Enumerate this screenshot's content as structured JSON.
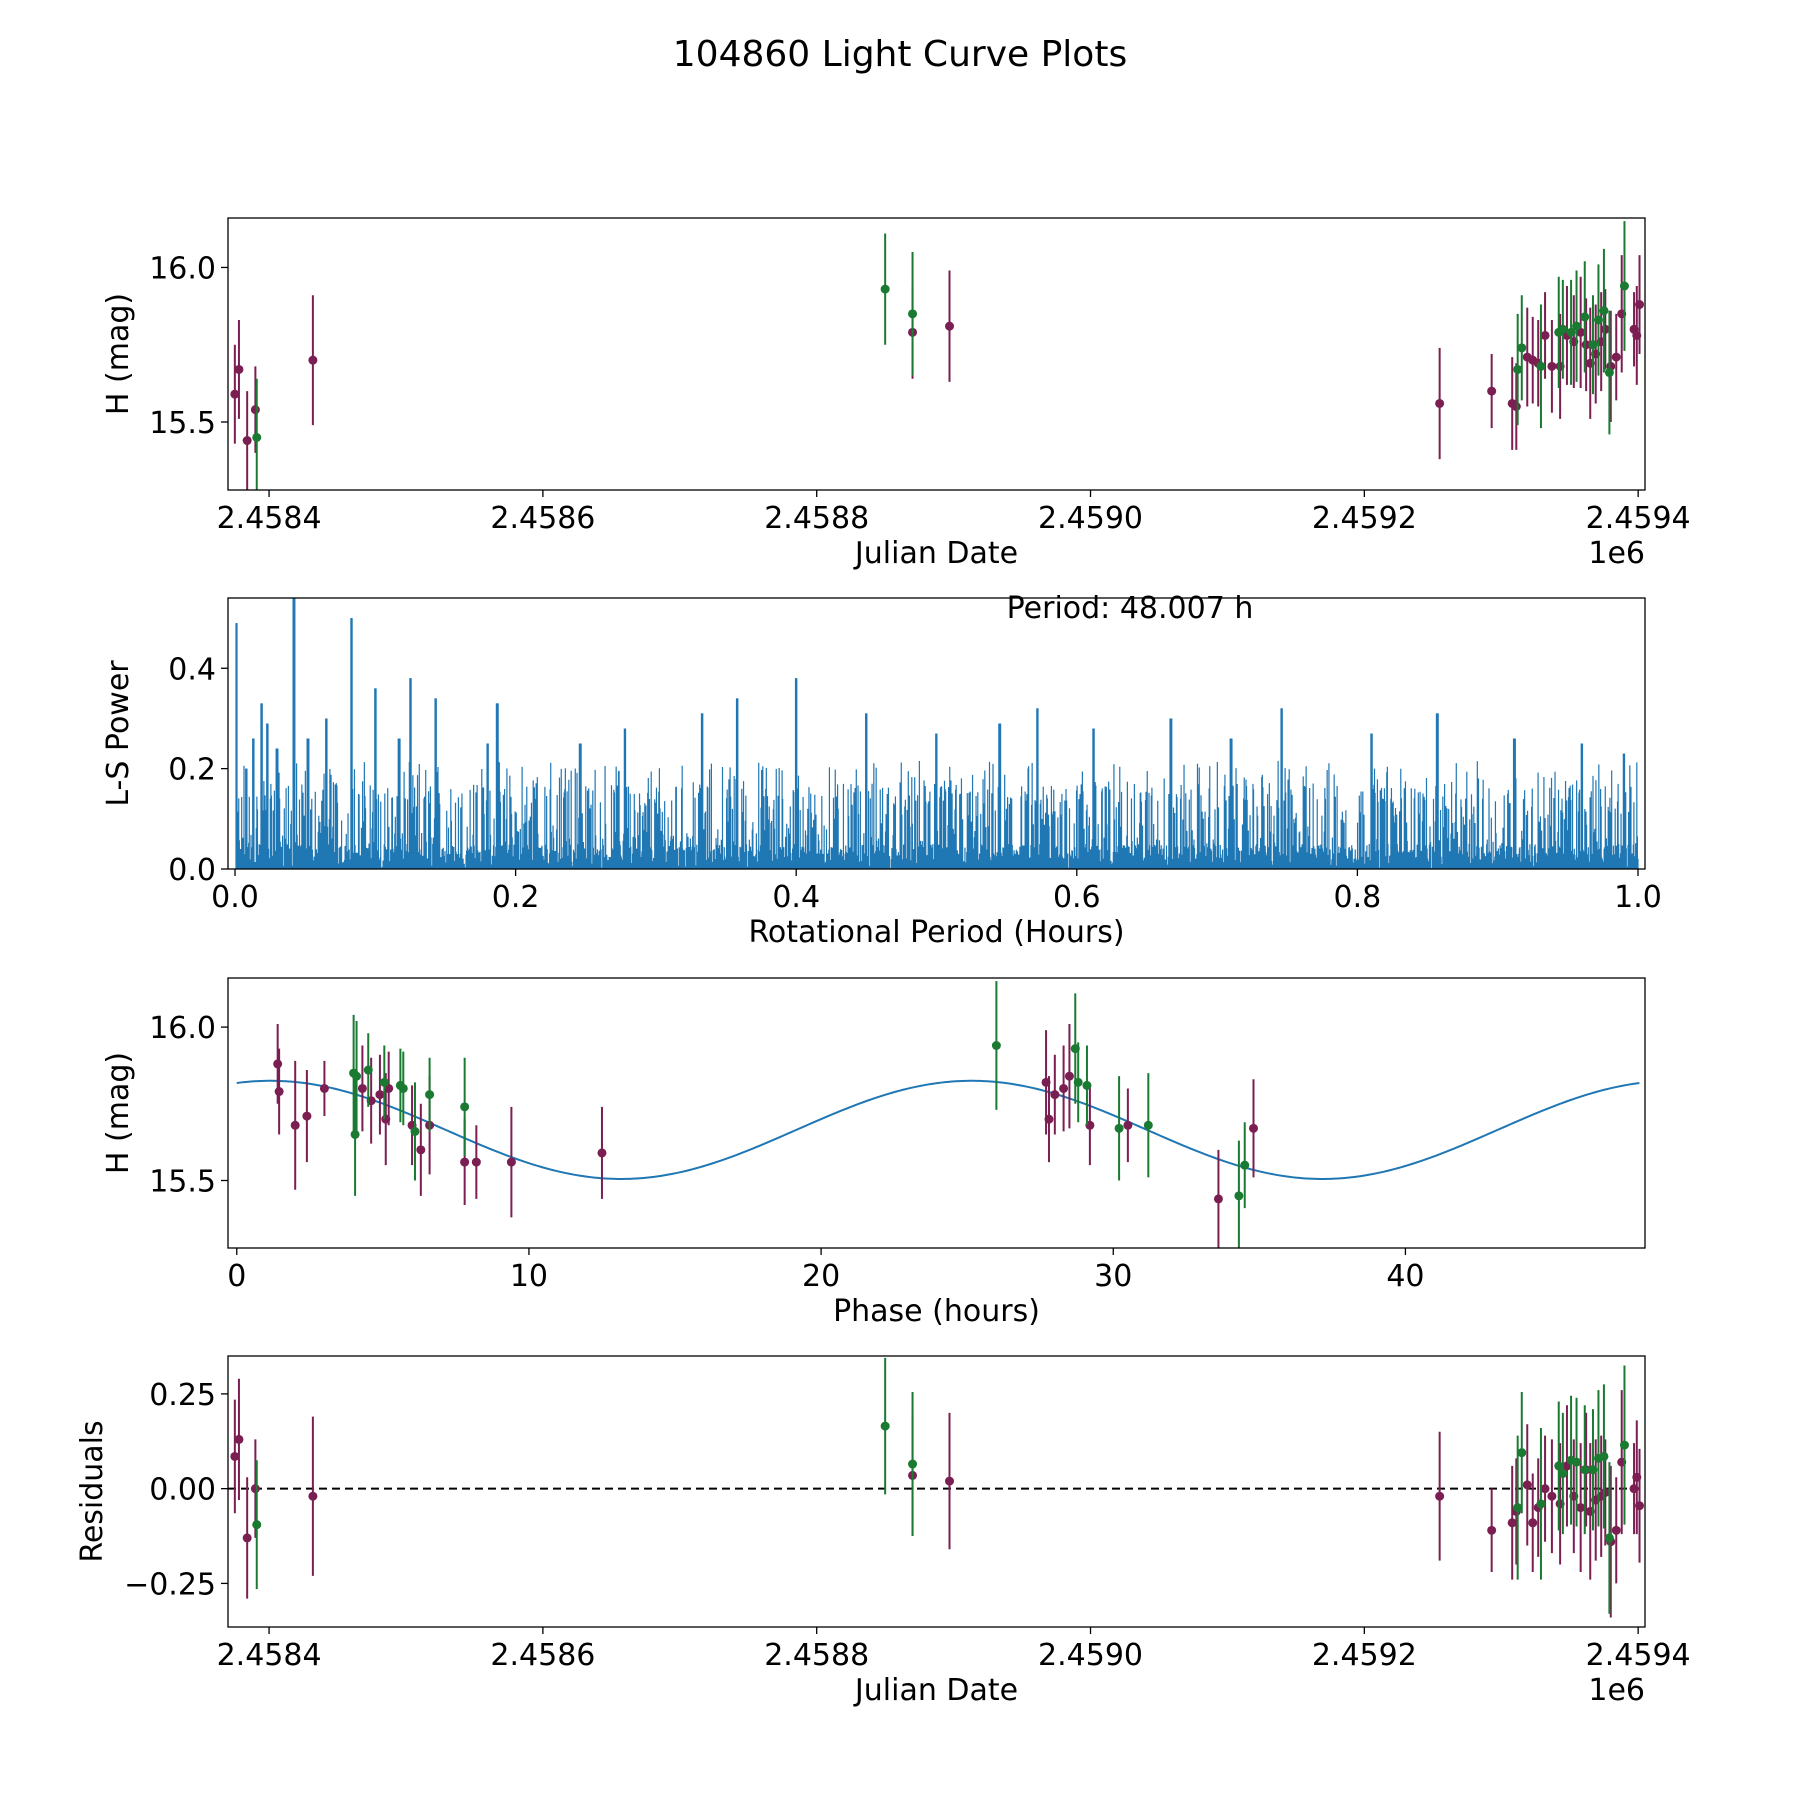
{
  "figure_title": "104860 Light Curve Plots",
  "colors": {
    "magenta": "#7b1f52",
    "green": "#1a7a32",
    "line": "#1f77b4"
  },
  "chart_data": [
    {
      "type": "scatter",
      "title": "",
      "xlabel": "Julian Date",
      "ylabel": "H (mag)",
      "x_offset_label": "1e6",
      "xlim": [
        2.45837,
        2.459405
      ],
      "ylim": [
        15.28,
        16.16
      ],
      "xticks": [
        2.4584,
        2.4586,
        2.4588,
        2.459,
        2.4592,
        2.4594
      ],
      "xtick_labels": [
        "2.4584",
        "2.4586",
        "2.4588",
        "2.4590",
        "2.4592",
        "2.4594"
      ],
      "yticks": [
        15.5,
        16.0
      ],
      "ytick_labels": [
        "15.5",
        "16.0"
      ],
      "series": [
        {
          "name": "band 1",
          "color": "magenta",
          "points": [
            [
              2.458375,
              15.59,
              0.16
            ],
            [
              2.458378,
              15.67,
              0.16
            ],
            [
              2.458384,
              15.44,
              0.16
            ],
            [
              2.45839,
              15.54,
              0.14
            ],
            [
              2.458432,
              15.7,
              0.21
            ],
            [
              2.45887,
              15.79,
              0.15
            ],
            [
              2.458897,
              15.81,
              0.18
            ],
            [
              2.459255,
              15.56,
              0.18
            ],
            [
              2.459293,
              15.6,
              0.12
            ],
            [
              2.459308,
              15.56,
              0.15
            ],
            [
              2.459311,
              15.55,
              0.14
            ],
            [
              2.459319,
              15.71,
              0.16
            ],
            [
              2.459323,
              15.7,
              0.14
            ],
            [
              2.459327,
              15.69,
              0.14
            ],
            [
              2.459332,
              15.78,
              0.14
            ],
            [
              2.459337,
              15.68,
              0.15
            ],
            [
              2.459343,
              15.68,
              0.17
            ],
            [
              2.459348,
              15.78,
              0.16
            ],
            [
              2.459353,
              15.76,
              0.15
            ],
            [
              2.459358,
              15.79,
              0.18
            ],
            [
              2.459362,
              15.75,
              0.15
            ],
            [
              2.459365,
              15.69,
              0.18
            ],
            [
              2.459369,
              15.72,
              0.16
            ],
            [
              2.459373,
              15.76,
              0.16
            ],
            [
              2.459376,
              15.8,
              0.13
            ],
            [
              2.45938,
              15.68,
              0.18
            ],
            [
              2.459384,
              15.71,
              0.14
            ],
            [
              2.459388,
              15.85,
              0.19
            ],
            [
              2.459397,
              15.8,
              0.12
            ],
            [
              2.459399,
              15.78,
              0.16
            ],
            [
              2.459401,
              15.88,
              0.16
            ]
          ]
        },
        {
          "name": "band 2",
          "color": "green",
          "points": [
            [
              2.458391,
              15.45,
              0.19
            ],
            [
              2.45885,
              15.93,
              0.18
            ],
            [
              2.45887,
              15.85,
              0.2
            ],
            [
              2.459312,
              15.67,
              0.18
            ],
            [
              2.459315,
              15.74,
              0.17
            ],
            [
              2.459329,
              15.68,
              0.2
            ],
            [
              2.459342,
              15.79,
              0.18
            ],
            [
              2.459345,
              15.8,
              0.16
            ],
            [
              2.459351,
              15.79,
              0.17
            ],
            [
              2.459355,
              15.81,
              0.18
            ],
            [
              2.459361,
              15.84,
              0.18
            ],
            [
              2.459367,
              15.75,
              0.16
            ],
            [
              2.459371,
              15.83,
              0.18
            ],
            [
              2.459375,
              15.86,
              0.2
            ],
            [
              2.459379,
              15.66,
              0.2
            ],
            [
              2.45939,
              15.94,
              0.21
            ]
          ]
        }
      ]
    },
    {
      "type": "line",
      "title": "",
      "xlabel": "Rotational Period (Hours)",
      "ylabel": "L-S Power",
      "annotation": "Period: 48.007 h",
      "xlim": [
        -0.005,
        1.005
      ],
      "ylim": [
        0,
        0.54
      ],
      "xticks": [
        0,
        0.2,
        0.4,
        0.6,
        0.8,
        1.0
      ],
      "xtick_labels": [
        "0.0",
        "0.2",
        "0.4",
        "0.6",
        "0.8",
        "1.0"
      ],
      "yticks": [
        0,
        0.2,
        0.4
      ],
      "ytick_labels": [
        "0.0",
        "0.2",
        "0.4"
      ],
      "n_points": 2400,
      "baseline_power": 0.17,
      "peaks": [
        [
          0.001,
          0.49
        ],
        [
          0.008,
          0.2
        ],
        [
          0.013,
          0.26
        ],
        [
          0.019,
          0.33
        ],
        [
          0.023,
          0.29
        ],
        [
          0.03,
          0.24
        ],
        [
          0.042,
          0.54
        ],
        [
          0.052,
          0.26
        ],
        [
          0.065,
          0.3
        ],
        [
          0.083,
          0.5
        ],
        [
          0.1,
          0.36
        ],
        [
          0.117,
          0.26
        ],
        [
          0.125,
          0.38
        ],
        [
          0.143,
          0.34
        ],
        [
          0.18,
          0.25
        ],
        [
          0.187,
          0.33
        ],
        [
          0.246,
          0.25
        ],
        [
          0.278,
          0.28
        ],
        [
          0.333,
          0.31
        ],
        [
          0.358,
          0.34
        ],
        [
          0.4,
          0.38
        ],
        [
          0.45,
          0.31
        ],
        [
          0.5,
          0.27
        ],
        [
          0.545,
          0.29
        ],
        [
          0.572,
          0.32
        ],
        [
          0.612,
          0.28
        ],
        [
          0.667,
          0.3
        ],
        [
          0.71,
          0.26
        ],
        [
          0.746,
          0.32
        ],
        [
          0.81,
          0.27
        ],
        [
          0.857,
          0.31
        ],
        [
          0.912,
          0.26
        ],
        [
          0.96,
          0.25
        ],
        [
          0.99,
          0.23
        ]
      ]
    },
    {
      "type": "scatter",
      "title": "",
      "xlabel": "Phase (hours)",
      "ylabel": "H (mag)",
      "xlim": [
        -0.3,
        48.2
      ],
      "ylim": [
        15.28,
        16.16
      ],
      "xticks": [
        0,
        10,
        20,
        30,
        40
      ],
      "xtick_labels": [
        "0",
        "10",
        "20",
        "30",
        "40"
      ],
      "yticks": [
        15.5,
        16.0
      ],
      "ytick_labels": [
        "15.5",
        "16.0"
      ],
      "model": {
        "period_hours": 48.007,
        "mean": 15.665,
        "amplitude": 0.16,
        "peak_phase": 1.15,
        "harmonics": 2
      },
      "series": [
        {
          "name": "band 1",
          "color": "magenta",
          "points": [
            [
              1.4,
              15.88,
              0.13
            ],
            [
              1.45,
              15.79,
              0.14
            ],
            [
              2.0,
              15.68,
              0.21
            ],
            [
              2.4,
              15.71,
              0.15
            ],
            [
              3.0,
              15.8,
              0.09
            ],
            [
              4.3,
              15.8,
              0.14
            ],
            [
              4.6,
              15.76,
              0.14
            ],
            [
              4.9,
              15.78,
              0.13
            ],
            [
              5.1,
              15.7,
              0.15
            ],
            [
              5.2,
              15.8,
              0.12
            ],
            [
              6.0,
              15.68,
              0.13
            ],
            [
              6.3,
              15.6,
              0.15
            ],
            [
              6.6,
              15.68,
              0.16
            ],
            [
              7.8,
              15.56,
              0.14
            ],
            [
              8.2,
              15.56,
              0.12
            ],
            [
              9.4,
              15.56,
              0.18
            ],
            [
              12.5,
              15.59,
              0.15
            ],
            [
              27.7,
              15.82,
              0.17
            ],
            [
              27.8,
              15.7,
              0.14
            ],
            [
              28.0,
              15.78,
              0.13
            ],
            [
              28.3,
              15.8,
              0.14
            ],
            [
              28.5,
              15.84,
              0.17
            ],
            [
              29.2,
              15.68,
              0.13
            ],
            [
              30.5,
              15.68,
              0.12
            ],
            [
              33.6,
              15.44,
              0.16
            ],
            [
              34.8,
              15.67,
              0.16
            ]
          ]
        },
        {
          "name": "band 2",
          "color": "green",
          "points": [
            [
              4.0,
              15.85,
              0.19
            ],
            [
              4.05,
              15.65,
              0.2
            ],
            [
              4.1,
              15.84,
              0.18
            ],
            [
              4.5,
              15.86,
              0.12
            ],
            [
              5.05,
              15.82,
              0.12
            ],
            [
              5.6,
              15.81,
              0.12
            ],
            [
              5.7,
              15.8,
              0.12
            ],
            [
              6.1,
              15.66,
              0.16
            ],
            [
              6.6,
              15.78,
              0.12
            ],
            [
              7.8,
              15.74,
              0.16
            ],
            [
              26.0,
              15.94,
              0.21
            ],
            [
              28.7,
              15.93,
              0.18
            ],
            [
              28.8,
              15.82,
              0.13
            ],
            [
              29.1,
              15.81,
              0.13
            ],
            [
              30.2,
              15.67,
              0.17
            ],
            [
              31.2,
              15.68,
              0.17
            ],
            [
              34.3,
              15.45,
              0.18
            ],
            [
              34.5,
              15.55,
              0.14
            ]
          ]
        }
      ]
    },
    {
      "type": "scatter",
      "title": "",
      "xlabel": "Julian Date",
      "ylabel": "Residuals",
      "x_offset_label": "1e6",
      "xlim": [
        2.45837,
        2.459405
      ],
      "ylim": [
        -0.365,
        0.35
      ],
      "xticks": [
        2.4584,
        2.4586,
        2.4588,
        2.459,
        2.4592,
        2.4594
      ],
      "xtick_labels": [
        "2.4584",
        "2.4586",
        "2.4588",
        "2.4590",
        "2.4592",
        "2.4594"
      ],
      "yticks": [
        -0.25,
        0.0,
        0.25
      ],
      "ytick_labels": [
        "−0.25",
        "0.00",
        "0.25"
      ],
      "reference_line": 0.0,
      "series": [
        {
          "name": "band 1",
          "color": "magenta",
          "points": [
            [
              2.458375,
              0.085,
              0.15
            ],
            [
              2.458378,
              0.13,
              0.16
            ],
            [
              2.458384,
              -0.13,
              0.16
            ],
            [
              2.45839,
              0.0,
              0.13
            ],
            [
              2.458432,
              -0.02,
              0.21
            ],
            [
              2.45887,
              0.035,
              0.16
            ],
            [
              2.458897,
              0.02,
              0.18
            ],
            [
              2.459255,
              -0.02,
              0.17
            ],
            [
              2.459293,
              -0.11,
              0.11
            ],
            [
              2.459308,
              -0.09,
              0.15
            ],
            [
              2.459311,
              -0.06,
              0.14
            ],
            [
              2.459319,
              0.01,
              0.16
            ],
            [
              2.459323,
              -0.09,
              0.13
            ],
            [
              2.459327,
              -0.05,
              0.13
            ],
            [
              2.459332,
              0.0,
              0.14
            ],
            [
              2.459337,
              -0.02,
              0.15
            ],
            [
              2.459343,
              -0.04,
              0.16
            ],
            [
              2.459348,
              0.06,
              0.16
            ],
            [
              2.459353,
              -0.02,
              0.15
            ],
            [
              2.459358,
              -0.05,
              0.17
            ],
            [
              2.459362,
              0.05,
              0.15
            ],
            [
              2.459365,
              -0.06,
              0.18
            ],
            [
              2.459369,
              -0.03,
              0.16
            ],
            [
              2.459373,
              -0.02,
              0.16
            ],
            [
              2.459376,
              -0.01,
              0.14
            ],
            [
              2.45938,
              -0.14,
              0.2
            ],
            [
              2.459384,
              -0.11,
              0.14
            ],
            [
              2.459388,
              0.07,
              0.19
            ],
            [
              2.459397,
              0.0,
              0.12
            ],
            [
              2.459399,
              0.03,
              0.15
            ],
            [
              2.459401,
              -0.045,
              0.15
            ]
          ]
        },
        {
          "name": "band 2",
          "color": "green",
          "points": [
            [
              2.458391,
              -0.095,
              0.17
            ],
            [
              2.45885,
              0.165,
              0.18
            ],
            [
              2.45887,
              0.065,
              0.19
            ],
            [
              2.459312,
              -0.05,
              0.19
            ],
            [
              2.459315,
              0.095,
              0.16
            ],
            [
              2.459329,
              -0.04,
              0.2
            ],
            [
              2.459342,
              0.06,
              0.17
            ],
            [
              2.459345,
              0.04,
              0.16
            ],
            [
              2.459351,
              0.075,
              0.17
            ],
            [
              2.459355,
              0.07,
              0.17
            ],
            [
              2.459361,
              0.05,
              0.17
            ],
            [
              2.459367,
              0.05,
              0.16
            ],
            [
              2.459371,
              0.08,
              0.18
            ],
            [
              2.459375,
              0.085,
              0.19
            ],
            [
              2.459379,
              -0.13,
              0.2
            ],
            [
              2.45939,
              0.115,
              0.21
            ]
          ]
        }
      ]
    }
  ]
}
